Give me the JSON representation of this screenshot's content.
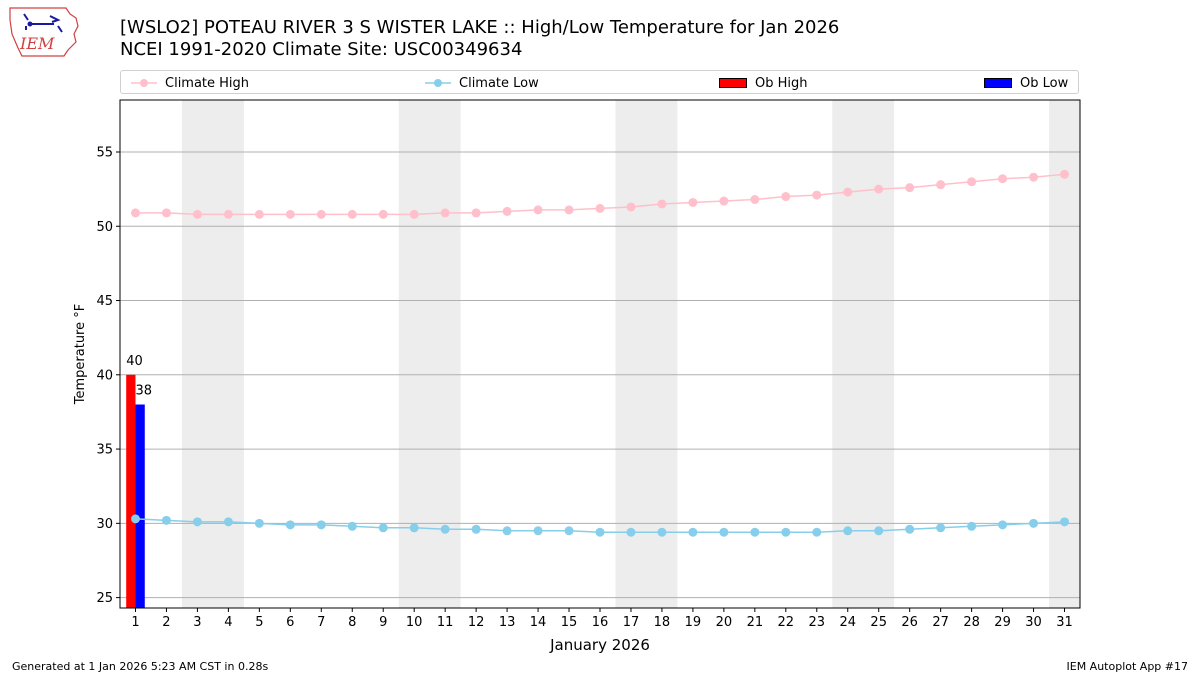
{
  "header": {
    "title_line1": "[WSLO2] POTEAU RIVER 3 S WISTER LAKE :: High/Low Temperature for Jan 2026",
    "title_line2": "NCEI 1991-2020 Climate Site: USC00349634",
    "logo_text": "IEM"
  },
  "footer": {
    "generated": "Generated at 1 Jan 2026 5:23 AM CST in 0.28s",
    "app": "IEM Autoplot App #17"
  },
  "colors": {
    "climate_high": "#ffc0cb",
    "climate_low": "#87ceeb",
    "ob_high": "#ff0000",
    "ob_low": "#0000ff",
    "weekend_shade": "#ededed",
    "grid": "#b0b0b0"
  },
  "chart_data": {
    "type": "bar",
    "title": "[WSLO2] POTEAU RIVER 3 S WISTER LAKE :: High/Low Temperature for Jan 2026",
    "xlabel": "January 2026",
    "ylabel": "Temperature °F",
    "ylim": [
      24.3,
      58.5
    ],
    "yticks": [
      25,
      30,
      35,
      40,
      45,
      50,
      55
    ],
    "xlim": [
      0.5,
      31.5
    ],
    "grid": "y",
    "legend_location": "top",
    "days": [
      1,
      2,
      3,
      4,
      5,
      6,
      7,
      8,
      9,
      10,
      11,
      12,
      13,
      14,
      15,
      16,
      17,
      18,
      19,
      20,
      21,
      22,
      23,
      24,
      25,
      26,
      27,
      28,
      29,
      30,
      31
    ],
    "weekend_spans": [
      [
        3,
        4
      ],
      [
        10,
        11
      ],
      [
        17,
        18
      ],
      [
        24,
        25
      ],
      [
        31,
        31
      ]
    ],
    "series": [
      {
        "name": "Climate High",
        "kind": "line",
        "values": [
          50.9,
          50.9,
          50.8,
          50.8,
          50.8,
          50.8,
          50.8,
          50.8,
          50.8,
          50.8,
          50.9,
          50.9,
          51.0,
          51.1,
          51.1,
          51.2,
          51.3,
          51.5,
          51.6,
          51.7,
          51.8,
          52.0,
          52.1,
          52.3,
          52.5,
          52.6,
          52.8,
          53.0,
          53.2,
          53.3,
          53.5
        ]
      },
      {
        "name": "Climate Low",
        "kind": "line",
        "values": [
          30.3,
          30.2,
          30.1,
          30.1,
          30.0,
          29.9,
          29.9,
          29.8,
          29.7,
          29.7,
          29.6,
          29.6,
          29.5,
          29.5,
          29.5,
          29.4,
          29.4,
          29.4,
          29.4,
          29.4,
          29.4,
          29.4,
          29.4,
          29.5,
          29.5,
          29.6,
          29.7,
          29.8,
          29.9,
          30.0,
          30.1
        ]
      },
      {
        "name": "Ob High",
        "kind": "bar",
        "values": [
          {
            "day": 1,
            "value": 40
          }
        ]
      },
      {
        "name": "Ob Low",
        "kind": "bar",
        "values": [
          {
            "day": 1,
            "value": 38
          }
        ]
      }
    ]
  }
}
